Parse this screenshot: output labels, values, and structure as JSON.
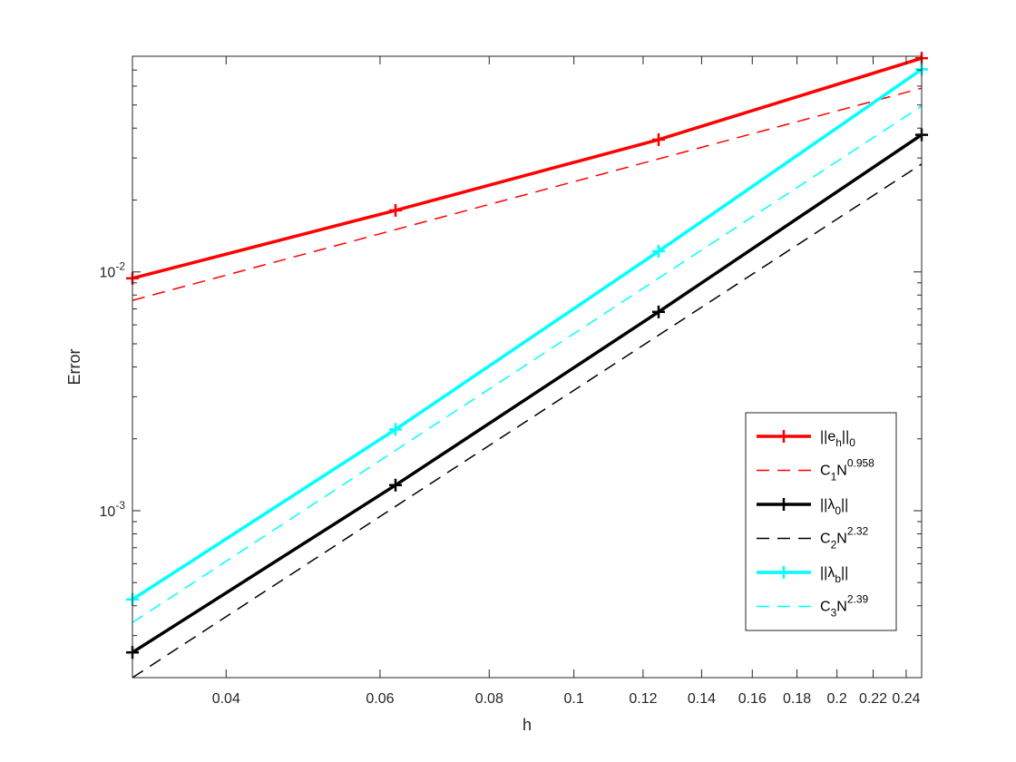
{
  "chart_data": {
    "type": "line",
    "xscale": "log",
    "yscale": "log",
    "xlabel": "h",
    "ylabel": "Error",
    "xlim": [
      0.03125,
      0.25
    ],
    "ylim": [
      0.0002,
      0.08
    ],
    "xticks": [
      {
        "value": 0.04,
        "label": "0.04"
      },
      {
        "value": 0.06,
        "label": "0.06"
      },
      {
        "value": 0.08,
        "label": "0.08"
      },
      {
        "value": 0.1,
        "label": "0.1"
      },
      {
        "value": 0.12,
        "label": "0.12"
      },
      {
        "value": 0.14,
        "label": "0.14"
      },
      {
        "value": 0.16,
        "label": "0.16"
      },
      {
        "value": 0.18,
        "label": "0.18"
      },
      {
        "value": 0.2,
        "label": "0.2"
      },
      {
        "value": 0.22,
        "label": "0.22"
      },
      {
        "value": 0.24,
        "label": "0.24"
      }
    ],
    "yticks": [
      {
        "value": 0.001,
        "base": "10",
        "exp": "-3"
      },
      {
        "value": 0.01,
        "base": "10",
        "exp": "-2"
      }
    ],
    "grid": false,
    "legend_position": "bottom-right",
    "series": [
      {
        "key": "eh",
        "legend": {
          "pre": "||e",
          "sub": "h",
          "mid": "||",
          "sub2": "0",
          "sup": ""
        },
        "color": "#ff0000",
        "style": "solid",
        "marker": "+",
        "x": [
          0.03125,
          0.0625,
          0.125,
          0.25
        ],
        "y": [
          0.0094,
          0.0181,
          0.0358,
          0.0785
        ]
      },
      {
        "key": "c1",
        "legend": {
          "pre": "C",
          "sub": "1",
          "mid": "N",
          "sub2": "",
          "sup": "0.958"
        },
        "color": "#ff0000",
        "style": "dashed",
        "marker": "",
        "x": [
          0.03125,
          0.25
        ],
        "y": [
          0.0076,
          0.0588
        ]
      },
      {
        "key": "lambda0",
        "legend": {
          "pre": "||λ",
          "sub": "0",
          "mid": "||",
          "sub2": "",
          "sup": ""
        },
        "color": "#000000",
        "style": "solid",
        "marker": "+",
        "x": [
          0.03125,
          0.0625,
          0.125,
          0.25
        ],
        "y": [
          0.000255,
          0.00128,
          0.0068,
          0.0375
        ]
      },
      {
        "key": "c2",
        "legend": {
          "pre": "C",
          "sub": "2",
          "mid": "N",
          "sub2": "",
          "sup": "2.32"
        },
        "color": "#000000",
        "style": "dashed",
        "marker": "",
        "x": [
          0.03125,
          0.25
        ],
        "y": [
          0.0002,
          0.0283
        ]
      },
      {
        "key": "lambdab",
        "legend": {
          "pre": "||λ",
          "sub": "b",
          "mid": "||",
          "sub2": "",
          "sup": ""
        },
        "color": "#00ffff",
        "style": "solid",
        "marker": "+",
        "x": [
          0.03125,
          0.0625,
          0.125,
          0.25
        ],
        "y": [
          0.000425,
          0.00219,
          0.0122,
          0.0705
        ]
      },
      {
        "key": "c3",
        "legend": {
          "pre": "C",
          "sub": "3",
          "mid": "N",
          "sub2": "",
          "sup": "2.39"
        },
        "color": "#00ffff",
        "style": "dashed",
        "marker": "",
        "x": [
          0.03125,
          0.25
        ],
        "y": [
          0.00034,
          0.0495
        ]
      }
    ]
  }
}
